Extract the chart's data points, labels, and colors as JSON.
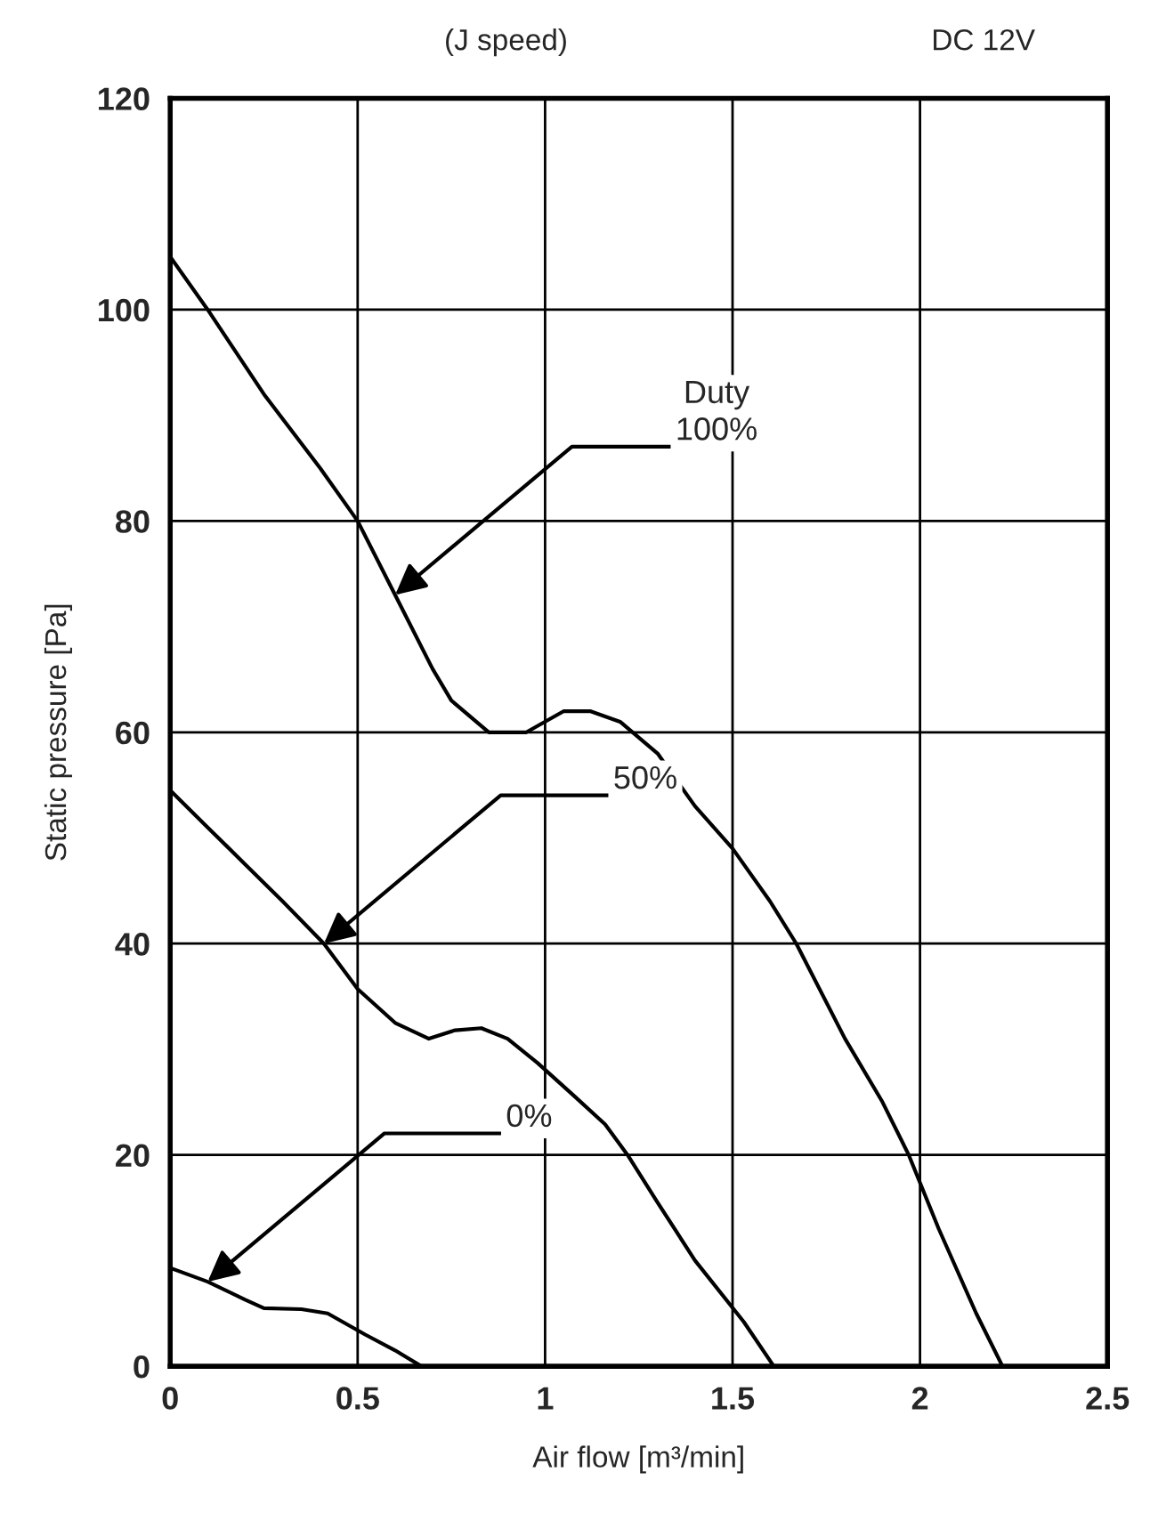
{
  "chart_data": {
    "type": "line",
    "title": "(J speed)",
    "subtitle": "DC 12V",
    "xlabel": "Air flow [m³/min]",
    "ylabel": "Static pressure [Pa]",
    "xlim": [
      0,
      2.5
    ],
    "xticks": [
      0,
      0.5,
      1,
      1.5,
      2,
      2.5
    ],
    "ylim": [
      0,
      120
    ],
    "yticks": [
      0,
      20,
      40,
      60,
      80,
      100,
      120
    ],
    "grid": true,
    "line_style": "solid",
    "marker": "none",
    "series": [
      {
        "color": "#000000",
        "x": [
          0,
          0.1,
          0.25,
          0.4,
          0.5,
          0.6,
          0.7,
          0.75,
          0.85,
          0.95,
          1.05,
          1.12,
          1.2,
          1.3,
          1.4,
          1.5,
          1.6,
          1.67,
          1.8,
          1.9,
          1.97,
          2.05,
          2.15,
          2.22
        ],
        "values": [
          105,
          100,
          92,
          85,
          80,
          73,
          66,
          63,
          60,
          60,
          62,
          62,
          61,
          58,
          53,
          49,
          44,
          40,
          31,
          25,
          20,
          13,
          5,
          0
        ]
      },
      {
        "color": "#000000",
        "x": [
          0,
          0.1,
          0.2,
          0.3,
          0.41,
          0.5,
          0.6,
          0.69,
          0.76,
          0.83,
          0.9,
          0.98,
          1.08,
          1.16,
          1.22,
          1.3,
          1.4,
          1.53,
          1.61
        ],
        "values": [
          54.5,
          51,
          47.5,
          44,
          40,
          35.7,
          32.5,
          31,
          31.8,
          32,
          31,
          28.7,
          25.5,
          22.9,
          20,
          15.5,
          10,
          4.2,
          0
        ]
      },
      {
        "color": "#000000",
        "x": [
          0,
          0.1,
          0.2,
          0.25,
          0.35,
          0.42,
          0.52,
          0.6,
          0.67
        ],
        "values": [
          9.3,
          8,
          6.3,
          5.5,
          5.4,
          5,
          3,
          1.5,
          0
        ]
      }
    ],
    "annotations": [
      {
        "text": "Duty\n100%",
        "x": 0.6,
        "y": 73
      },
      {
        "text": "50%",
        "x": 0.41,
        "y": 40
      },
      {
        "text": "0%",
        "x": 0.1,
        "y": 8
      }
    ]
  }
}
